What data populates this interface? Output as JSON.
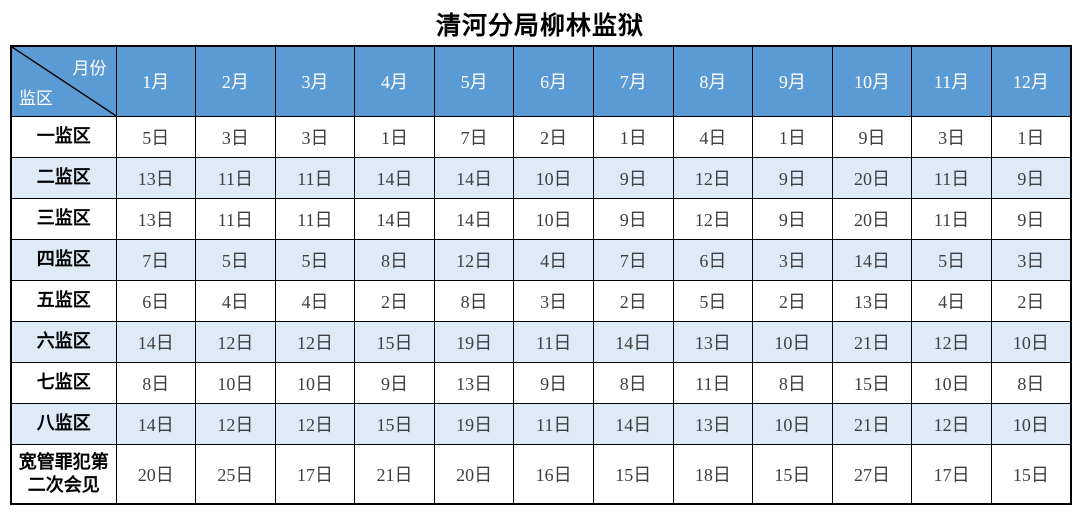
{
  "title": "清河分局柳林监狱",
  "colors": {
    "header_bg": "#5b9bd5",
    "header_text": "#ffffff",
    "alt_row_bg": "#deeaf6",
    "row_bg": "#ffffff",
    "border": "#000000",
    "body_text": "#3f3f3f",
    "title_text": "#000000"
  },
  "chart_data": {
    "type": "table",
    "title": "清河分局柳林监狱",
    "corner_labels": {
      "top_right": "月份",
      "bottom_left": "监区"
    },
    "columns": [
      "1月",
      "2月",
      "3月",
      "4月",
      "5月",
      "6月",
      "7月",
      "8月",
      "9月",
      "10月",
      "11月",
      "12月"
    ],
    "cell_unit": "日",
    "rows": [
      {
        "label": "一监区",
        "values": [
          5,
          3,
          3,
          1,
          7,
          2,
          1,
          4,
          1,
          9,
          3,
          1
        ]
      },
      {
        "label": "二监区",
        "values": [
          13,
          11,
          11,
          14,
          14,
          10,
          9,
          12,
          9,
          20,
          11,
          9
        ]
      },
      {
        "label": "三监区",
        "values": [
          13,
          11,
          11,
          14,
          14,
          10,
          9,
          12,
          9,
          20,
          11,
          9
        ]
      },
      {
        "label": "四监区",
        "values": [
          7,
          5,
          5,
          8,
          12,
          4,
          7,
          6,
          3,
          14,
          5,
          3
        ]
      },
      {
        "label": "五监区",
        "values": [
          6,
          4,
          4,
          2,
          8,
          3,
          2,
          5,
          2,
          13,
          4,
          2
        ]
      },
      {
        "label": "六监区",
        "values": [
          14,
          12,
          12,
          15,
          19,
          11,
          14,
          13,
          10,
          21,
          12,
          10
        ]
      },
      {
        "label": "七监区",
        "values": [
          8,
          10,
          10,
          9,
          13,
          9,
          8,
          11,
          8,
          15,
          10,
          8
        ]
      },
      {
        "label": "八监区",
        "values": [
          14,
          12,
          12,
          15,
          19,
          11,
          14,
          13,
          10,
          21,
          12,
          10
        ]
      },
      {
        "label": "宽管罪犯第二次会见",
        "values": [
          20,
          25,
          17,
          21,
          20,
          16,
          15,
          18,
          15,
          27,
          17,
          15
        ]
      }
    ]
  }
}
